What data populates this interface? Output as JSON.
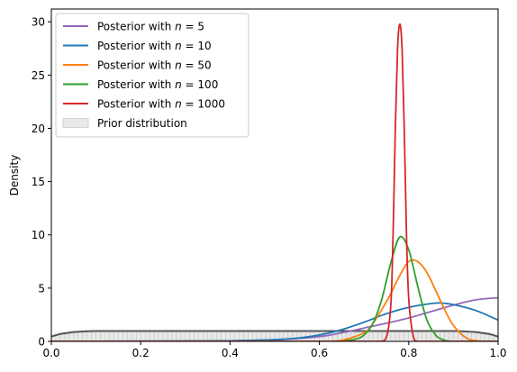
{
  "chart_data": {
    "type": "line",
    "xlabel": "",
    "ylabel": "Density",
    "xlim": [
      0,
      1
    ],
    "ylim": [
      0,
      31.2
    ],
    "xticks": [
      "0.0",
      "0.2",
      "0.4",
      "0.6",
      "0.8",
      "1.0"
    ],
    "yticks": [
      "0",
      "5",
      "10",
      "15",
      "20",
      "25",
      "30"
    ],
    "grid": false,
    "legend_position": "top-left",
    "series": [
      {
        "name": "Posterior with n = 5",
        "legend": {
          "prefix": "Posterior with ",
          "var": "n",
          "rest": " = 5"
        },
        "color": "#9467bd",
        "kind": "line",
        "x": [
          0.3,
          0.4,
          0.5,
          0.6,
          0.65,
          0.7,
          0.75,
          0.8,
          0.85,
          0.9,
          0.95,
          1.0
        ],
        "y": [
          0.0,
          0.05,
          0.15,
          0.45,
          0.8,
          1.25,
          1.7,
          2.2,
          2.8,
          3.4,
          3.9,
          4.1
        ]
      },
      {
        "name": "Posterior with n = 10",
        "legend": {
          "prefix": "Posterior with ",
          "var": "n",
          "rest": " = 10"
        },
        "color": "#1f77b4",
        "kind": "line",
        "x": [
          0.4,
          0.5,
          0.55,
          0.6,
          0.65,
          0.7,
          0.75,
          0.8,
          0.85,
          0.87,
          0.9,
          0.95,
          1.0
        ],
        "y": [
          0.05,
          0.15,
          0.3,
          0.6,
          1.1,
          1.8,
          2.6,
          3.2,
          3.55,
          3.6,
          3.45,
          2.9,
          2.0
        ]
      },
      {
        "name": "Posterior with n = 50",
        "legend": {
          "prefix": "Posterior with ",
          "var": "n",
          "rest": " = 50"
        },
        "color": "#ff7f0e",
        "kind": "line",
        "x": [
          0.6,
          0.65,
          0.7,
          0.72,
          0.74,
          0.76,
          0.78,
          0.8,
          0.82,
          0.84,
          0.86,
          0.88,
          0.9,
          0.93,
          0.96
        ],
        "y": [
          0.0,
          0.1,
          0.8,
          1.7,
          3.0,
          4.5,
          6.2,
          7.5,
          7.5,
          6.5,
          4.8,
          3.0,
          1.5,
          0.3,
          0.0
        ]
      },
      {
        "name": "Posterior with n = 100",
        "legend": {
          "prefix": "Posterior with ",
          "var": "n",
          "rest": " = 100"
        },
        "color": "#2ca02c",
        "kind": "line",
        "x": [
          0.65,
          0.68,
          0.7,
          0.72,
          0.74,
          0.76,
          0.78,
          0.8,
          0.82,
          0.84,
          0.86,
          0.88,
          0.9
        ],
        "y": [
          0.0,
          0.2,
          0.6,
          1.7,
          4.0,
          7.4,
          9.8,
          8.6,
          5.2,
          2.1,
          0.6,
          0.1,
          0.0
        ]
      },
      {
        "name": "Posterior with n = 1000",
        "legend": {
          "prefix": "Posterior with ",
          "var": "n",
          "rest": " = 1000"
        },
        "color": "#d62728",
        "kind": "line",
        "x": [
          0.73,
          0.75,
          0.76,
          0.765,
          0.77,
          0.775,
          0.78,
          0.785,
          0.79,
          0.795,
          0.8,
          0.81,
          0.82
        ],
        "y": [
          0.0,
          0.4,
          3.5,
          10.0,
          20.0,
          27.5,
          29.8,
          27.5,
          20.0,
          10.0,
          4.0,
          0.5,
          0.0
        ]
      },
      {
        "name": "Prior distribution",
        "legend": {
          "prefix": "Prior distribution",
          "var": "",
          "rest": ""
        },
        "color": "#555555",
        "fill": "#e8e8e8",
        "kind": "prior",
        "x": [
          0.0,
          0.02,
          0.05,
          0.08,
          0.1,
          0.9,
          0.92,
          0.95,
          0.98,
          1.0
        ],
        "y": [
          0.45,
          0.7,
          0.88,
          0.95,
          0.97,
          0.97,
          0.95,
          0.88,
          0.7,
          0.45
        ]
      }
    ]
  }
}
